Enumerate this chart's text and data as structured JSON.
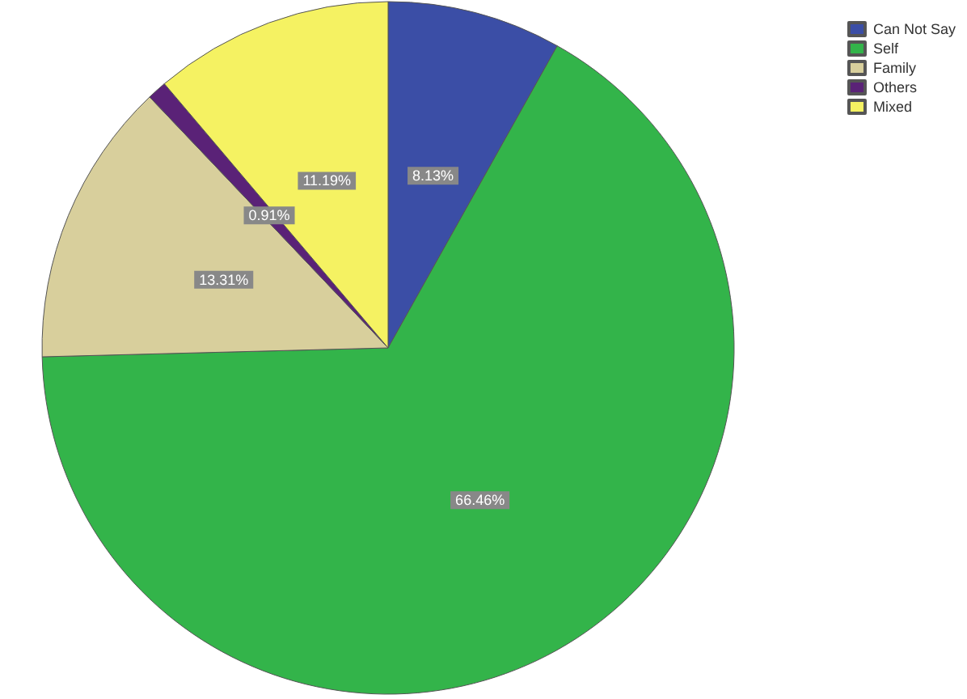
{
  "chart_data": {
    "type": "pie",
    "categories": [
      "Can Not Say",
      "Self",
      "Family",
      "Others",
      "Mixed"
    ],
    "values": [
      8.13,
      66.46,
      13.31,
      0.91,
      11.19
    ],
    "value_labels": [
      "8.13%",
      "66.46%",
      "13.31%",
      "0.91%",
      "11.19%"
    ],
    "colors": [
      "#3b4ea6",
      "#33b44a",
      "#d8cf9c",
      "#5a2277",
      "#f5f262"
    ],
    "legend": "top right"
  }
}
